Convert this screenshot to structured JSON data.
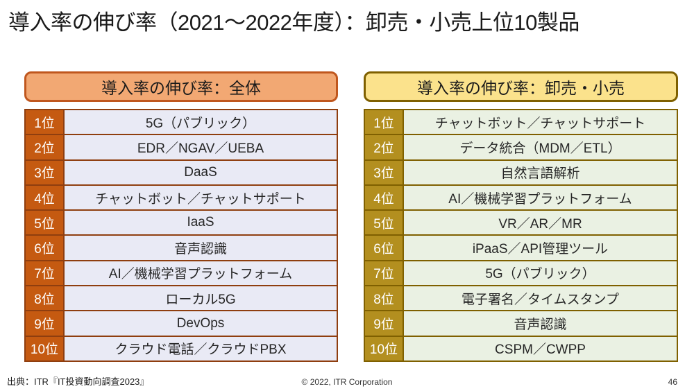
{
  "title": "導入率の伸び率（2021～2022年度）：卸売・小売上位10製品",
  "panels": {
    "overall": {
      "header": "導入率の伸び率：全体",
      "rows": [
        {
          "rank": "1位",
          "product": "5G（パブリック）"
        },
        {
          "rank": "2位",
          "product": "EDR／NGAV／UEBA"
        },
        {
          "rank": "3位",
          "product": "DaaS"
        },
        {
          "rank": "4位",
          "product": "チャットボット／チャットサポート"
        },
        {
          "rank": "5位",
          "product": "IaaS"
        },
        {
          "rank": "6位",
          "product": "音声認識"
        },
        {
          "rank": "7位",
          "product": "AI／機械学習プラットフォーム"
        },
        {
          "rank": "8位",
          "product": "ローカル5G"
        },
        {
          "rank": "9位",
          "product": "DevOps"
        },
        {
          "rank": "10位",
          "product": "クラウド電話／クラウドPBX"
        }
      ]
    },
    "wholesale_retail": {
      "header": "導入率の伸び率：卸売・小売",
      "rows": [
        {
          "rank": "1位",
          "product": "チャットボット／チャットサポート"
        },
        {
          "rank": "2位",
          "product": "データ統合（MDM／ETL）"
        },
        {
          "rank": "3位",
          "product": "自然言語解析"
        },
        {
          "rank": "4位",
          "product": "AI／機械学習プラットフォーム"
        },
        {
          "rank": "5位",
          "product": "VR／AR／MR"
        },
        {
          "rank": "6位",
          "product": "iPaaS／API管理ツール"
        },
        {
          "rank": "7位",
          "product": "5G（パブリック）"
        },
        {
          "rank": "8位",
          "product": "電子署名／タイムスタンプ"
        },
        {
          "rank": "9位",
          "product": "音声認識"
        },
        {
          "rank": "10位",
          "product": "CSPM／CWPP"
        }
      ]
    }
  },
  "footer": {
    "source": "出典：ITR『IT投資動向調査2023』",
    "copyright": "© 2022, ITR Corporation",
    "page_number": "46"
  },
  "colors": {
    "title_text": "#1a1a1a",
    "left_header_bg": "#F2A873",
    "left_header_border": "#C0571E",
    "left_rank_bg": "#C55A11",
    "left_cell_bg": "#E9EAF5",
    "left_border": "#8F3E0F",
    "right_header_bg": "#FBE28C",
    "right_header_border": "#7F6000",
    "right_rank_bg": "#B38F1F",
    "right_cell_bg": "#EAF1E3",
    "right_border": "#7F6000"
  }
}
